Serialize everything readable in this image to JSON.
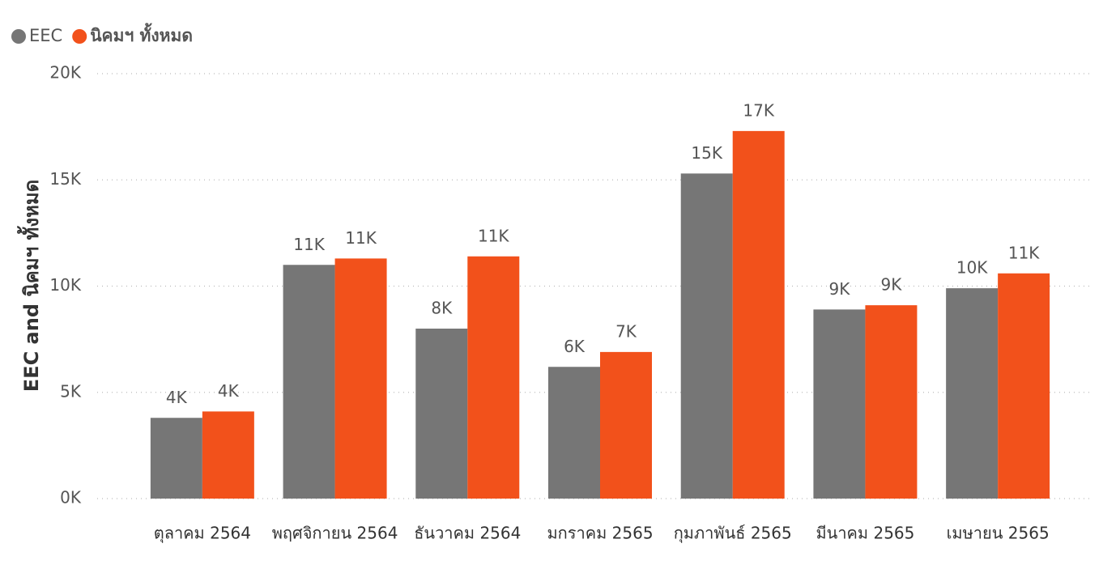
{
  "chart_data": {
    "type": "bar",
    "y_axis_label": "EEC and นิคมฯ ทั้งหมด",
    "categories": [
      "ตุลาคม 2564",
      "พฤศจิกายน 2564",
      "ธันวาคม 2564",
      "มกราคม 2565",
      "กุมภาพันธ์ 2565",
      "มีนาคม 2565",
      "เมษายน 2565"
    ],
    "series": [
      {
        "name": "EEC",
        "color": "#767676",
        "values": [
          3800,
          11000,
          8000,
          6200,
          15300,
          8900,
          9900
        ],
        "value_labels": [
          "4K",
          "11K",
          "8K",
          "6K",
          "15K",
          "9K",
          "10K"
        ]
      },
      {
        "name": "นิคมฯ ทั้งหมด",
        "color": "#f2511b",
        "values": [
          4100,
          11300,
          11400,
          6900,
          17300,
          9100,
          10600
        ],
        "value_labels": [
          "4K",
          "11K",
          "11K",
          "7K",
          "17K",
          "9K",
          "11K"
        ]
      }
    ],
    "ylim": [
      0,
      20000
    ],
    "yticks": [
      {
        "value": 0,
        "label": "0K"
      },
      {
        "value": 5000,
        "label": "5K"
      },
      {
        "value": 10000,
        "label": "10K"
      },
      {
        "value": 15000,
        "label": "15K"
      },
      {
        "value": 20000,
        "label": "20K"
      }
    ],
    "grid": true
  }
}
